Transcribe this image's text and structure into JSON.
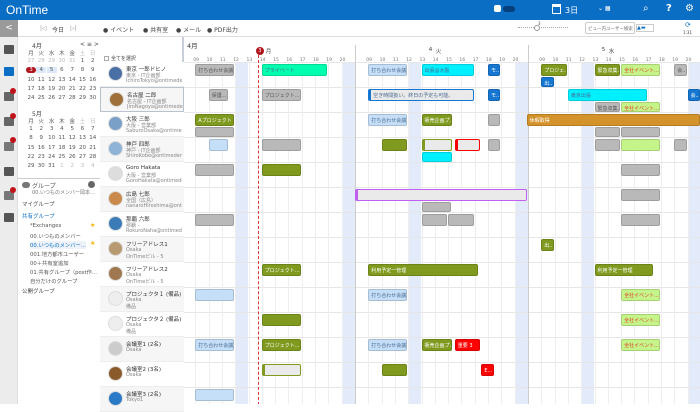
{
  "app": {
    "title": "OnTime"
  },
  "topbar": {
    "view_label": "3日",
    "icons": [
      "group-toggle-icon",
      "calendar-icon",
      "view-dropdown-icon",
      "zoom-icon",
      "help-icon",
      "settings-icon"
    ]
  },
  "toolbar": {
    "collapse": "<",
    "prev": "|◁",
    "today": "今日",
    "next": "▷|",
    "event": "イベント",
    "room": "共有室",
    "mail": "メール",
    "pdf": "PDF出力",
    "zoom_level": "3",
    "search_placeholder": "ビュー内ユーザー検索",
    "refresh_time": "1:31"
  },
  "minical": {
    "april": {
      "title": "4月",
      "nav": "< ≡ >",
      "weekdays": [
        "月",
        "火",
        "水",
        "木",
        "金",
        "土",
        "日"
      ],
      "days": [
        [
          "27",
          1
        ],
        [
          "28",
          1
        ],
        [
          "29",
          1
        ],
        [
          "30",
          1
        ],
        [
          "31",
          1
        ],
        [
          "1",
          0
        ],
        [
          "2",
          0
        ],
        [
          "3",
          0
        ],
        [
          "4",
          0
        ],
        [
          "5",
          0
        ],
        [
          "6",
          0
        ],
        [
          "7",
          0
        ],
        [
          "8",
          0
        ],
        [
          "9",
          0
        ],
        [
          "10",
          0
        ],
        [
          "11",
          0
        ],
        [
          "12",
          0
        ],
        [
          "13",
          0
        ],
        [
          "14",
          0
        ],
        [
          "15",
          0
        ],
        [
          "16",
          0
        ],
        [
          "17",
          0
        ],
        [
          "18",
          0
        ],
        [
          "19",
          0
        ],
        [
          "20",
          0
        ],
        [
          "21",
          0
        ],
        [
          "22",
          0
        ],
        [
          "23",
          0
        ],
        [
          "24",
          0
        ],
        [
          "25",
          0
        ],
        [
          "26",
          0
        ],
        [
          "27",
          0
        ],
        [
          "28",
          0
        ],
        [
          "29",
          0
        ],
        [
          "30",
          0
        ]
      ]
    },
    "may": {
      "title": "5月",
      "weekdays": [
        "月",
        "火",
        "水",
        "木",
        "金",
        "土",
        "日"
      ],
      "days": [
        [
          "1",
          0
        ],
        [
          "2",
          0
        ],
        [
          "3",
          0
        ],
        [
          "4",
          0
        ],
        [
          "5",
          0
        ],
        [
          "6",
          0
        ],
        [
          "7",
          0
        ],
        [
          "8",
          0
        ],
        [
          "9",
          0
        ],
        [
          "10",
          0
        ],
        [
          "11",
          0
        ],
        [
          "12",
          0
        ],
        [
          "13",
          0
        ],
        [
          "14",
          0
        ],
        [
          "15",
          0
        ],
        [
          "16",
          0
        ],
        [
          "17",
          0
        ],
        [
          "18",
          0
        ],
        [
          "19",
          0
        ],
        [
          "20",
          0
        ],
        [
          "21",
          0
        ],
        [
          "22",
          0
        ],
        [
          "23",
          0
        ],
        [
          "24",
          0
        ],
        [
          "25",
          0
        ],
        [
          "26",
          0
        ],
        [
          "27",
          0
        ],
        [
          "28",
          0
        ],
        [
          "29",
          0
        ],
        [
          "30",
          0
        ],
        [
          "31",
          0
        ],
        [
          "1",
          1
        ],
        [
          "2",
          1
        ],
        [
          "3",
          1
        ],
        [
          "4",
          1
        ]
      ]
    },
    "today": "3"
  },
  "groups": {
    "title": "グループ",
    "current": "00.いつものメンバー岡本...",
    "sections": [
      "マイグループ",
      "共有グループ",
      "公開グループ"
    ],
    "shared_items": [
      {
        "label": "*Exchanges",
        "star": true
      },
      {
        "label": "00.いつものメンバー",
        "star": false
      },
      {
        "label": "00.いつものメンバー...",
        "star": true
      },
      {
        "label": "001.地方都市ユーザー",
        "star": false
      },
      {
        "label": "00＋共有室追加",
        "star": false
      },
      {
        "label": "01.共有グループ（post作...",
        "star": false
      },
      {
        "label": "自分だけのグループ",
        "star": false
      }
    ]
  },
  "people": {
    "select_all": "全てを選択",
    "rows": [
      {
        "name": "東京 一郎ドヒノ",
        "sub": "東京 - IT企画部",
        "mail": "IchiroTokyo@ontimedemo.com",
        "color": "#4a6fa5"
      },
      {
        "name": "名古屋 二郎",
        "sub": "名古屋 - IT企画部",
        "mail": "JiroNagoya@ontimedemo.com",
        "color": "#a0703a"
      },
      {
        "name": "大阪 三郎",
        "sub": "大阪 - 営業部",
        "mail": "SaburoOsaka@ontimedemo.com",
        "color": "#7aa0c8"
      },
      {
        "name": "神戸 四郎",
        "sub": "神戸 - IT企画部",
        "mail": "ShiroKobe@ontimedemo.com",
        "color": "#8fb3d6"
      },
      {
        "name": "Goro Hakata",
        "sub": "大阪 - 営業部",
        "mail": "GoroHakata@ontimedemo.com",
        "color": "#ddd"
      },
      {
        "name": "広島 七郎",
        "sub": "全国（広島）",
        "mail": "nanaroHiroshima@ontimedemo.com",
        "color": "#c98a4b"
      },
      {
        "name": "那覇 六郎",
        "sub": "那覇 -",
        "mail": "RokuroNaha@ontimedemo.com",
        "color": "#3b7bb8"
      },
      {
        "name": "フリーアドレス1",
        "sub": "Osaka",
        "mail": "OnTimeビル - 5",
        "color": "#b89a70"
      },
      {
        "name": "フリーアドレス2",
        "sub": "Osaka",
        "mail": "OnTimeビル - 5",
        "color": "#a07850"
      },
      {
        "name": "プロジェクタ１ (備品)",
        "sub": "Osaka",
        "mail": "備品",
        "color": "#eee"
      },
      {
        "name": "プロジェクタ２ (備品)",
        "sub": "Osaka",
        "mail": "備品",
        "color": "#eee"
      },
      {
        "name": "会議室1 (2名)",
        "sub": "Osaka",
        "mail": "",
        "color": "#ccc"
      },
      {
        "name": "会議室2 (3名)",
        "sub": "Osaka",
        "mail": "",
        "color": "#8a5a2a"
      },
      {
        "name": "会議室3 (2名)",
        "sub": "Tokyo1",
        "mail": "",
        "color": "#2a7ac8"
      }
    ]
  },
  "calendar": {
    "month": "4月",
    "days": [
      {
        "num": "3",
        "dow": "月",
        "today": true
      },
      {
        "num": "4",
        "dow": "火"
      },
      {
        "num": "5",
        "dow": "水"
      }
    ],
    "hours": [
      "09",
      "10",
      "11",
      "12",
      "13",
      "14",
      "15",
      "16",
      "17",
      "18",
      "19",
      "20"
    ],
    "colors": {
      "gray": "#b9b9b9",
      "lightblue": "#c5dff8",
      "olive": "#7f9a1e",
      "cyan": "#00f0ff",
      "mint": "#00ffae",
      "blue": "#1677d2",
      "lime": "#c5f58a",
      "orange": "#d4922a",
      "red": "#ff0000",
      "empty": "#eaeaea"
    },
    "events": [
      {
        "row": 0,
        "day": 0,
        "s": 9,
        "e": 12,
        "lane": 0,
        "type": "gray",
        "label": "打ち合わせ会議"
      },
      {
        "row": 0,
        "day": 0,
        "s": 14,
        "e": 19,
        "lane": 0,
        "type": "mint",
        "label": "プライベート"
      },
      {
        "row": 0,
        "day": 1,
        "s": 9,
        "e": 12,
        "lane": 0,
        "type": "lightblue",
        "label": "打ち合わせ会議"
      },
      {
        "row": 0,
        "day": 1,
        "s": 13,
        "e": 17,
        "lane": 0,
        "type": "cyan",
        "label": "出張@大阪"
      },
      {
        "row": 0,
        "day": 1,
        "s": 18,
        "e": 19,
        "lane": 0,
        "type": "blue",
        "label": "モ..."
      },
      {
        "row": 0,
        "day": 2,
        "s": 9,
        "e": 11,
        "lane": 0,
        "type": "olive",
        "label": "プロジェ..."
      },
      {
        "row": 0,
        "day": 2,
        "s": 9,
        "e": 10,
        "lane": 1,
        "type": "blue",
        "label": "出..."
      },
      {
        "row": 0,
        "day": 2,
        "s": 13,
        "e": 15,
        "lane": 0,
        "type": "olive",
        "label": "緊急収集..."
      },
      {
        "row": 0,
        "day": 2,
        "s": 15,
        "e": 18,
        "lane": 0,
        "type": "lime",
        "label": "全社イベント..."
      },
      {
        "row": 0,
        "day": 2,
        "s": 19,
        "e": 20,
        "lane": 0,
        "type": "gray",
        "label": "会..."
      },
      {
        "row": 1,
        "day": 0,
        "s": 10,
        "e": 11.5,
        "lane": 0,
        "type": "gray",
        "label": "保護..."
      },
      {
        "row": 1,
        "day": 0,
        "s": 14,
        "e": 17,
        "lane": 0,
        "type": "gray",
        "label": "プロジェクト..."
      },
      {
        "row": 1,
        "day": 1,
        "s": 9,
        "e": 17,
        "lane": 0,
        "type": "empty",
        "accent": "blue",
        "label": "空き時間扱い。終日の予定も可能。"
      },
      {
        "row": 1,
        "day": 1,
        "s": 18,
        "e": 19,
        "lane": 0,
        "type": "blue",
        "label": "モ..."
      },
      {
        "row": 1,
        "day": 2,
        "s": 11,
        "e": 17,
        "lane": 0,
        "type": "cyan",
        "label": "東京出張"
      },
      {
        "row": 1,
        "day": 2,
        "s": 13,
        "e": 15,
        "lane": 1,
        "type": "gray",
        "label": "緊急収集..."
      },
      {
        "row": 1,
        "day": 2,
        "s": 15,
        "e": 18,
        "lane": 1,
        "type": "lime",
        "label": "全社イベント..."
      },
      {
        "row": 1,
        "day": 2,
        "s": 16.5,
        "e": 18.5,
        "lane": 2,
        "type": "blue",
        "label": "週間報告"
      },
      {
        "row": 1,
        "day": 2,
        "s": 20,
        "e": 21,
        "lane": 0,
        "type": "blue",
        "label": "会..."
      },
      {
        "row": 2,
        "day": 0,
        "s": 9,
        "e": 12,
        "lane": 0,
        "type": "olive",
        "label": "Aプロジェクト"
      },
      {
        "row": 2,
        "day": 0,
        "s": 9,
        "e": 12,
        "lane": 1,
        "type": "gray",
        "label": ""
      },
      {
        "row": 2,
        "day": 1,
        "s": 9,
        "e": 12,
        "lane": 0,
        "type": "lightblue",
        "label": "打ち合わせ会議"
      },
      {
        "row": 2,
        "day": 1,
        "s": 13,
        "e": 15.4,
        "lane": 0,
        "type": "olive",
        "label": "販売企画プ..."
      },
      {
        "row": 2,
        "day": 1,
        "s": 18,
        "e": 19,
        "lane": 0,
        "type": "gray",
        "label": ""
      },
      {
        "row": 2,
        "day": 2,
        "s": 7.9,
        "e": 21,
        "lane": 0,
        "type": "orange",
        "label": "休暇取得"
      },
      {
        "row": 2,
        "day": 2,
        "s": 13,
        "e": 15,
        "lane": 1,
        "type": "gray",
        "label": ""
      },
      {
        "row": 2,
        "day": 2,
        "s": 15,
        "e": 18,
        "lane": 1,
        "type": "gray",
        "label": ""
      },
      {
        "row": 3,
        "day": 0,
        "s": 10,
        "e": 11.5,
        "lane": 0,
        "type": "lightblue",
        "label": ""
      },
      {
        "row": 3,
        "day": 0,
        "s": 14,
        "e": 17,
        "lane": 0,
        "type": "gray",
        "label": ""
      },
      {
        "row": 3,
        "day": 1,
        "s": 10,
        "e": 12,
        "lane": 0,
        "type": "olive",
        "label": ""
      },
      {
        "row": 3,
        "day": 1,
        "s": 13,
        "e": 15.4,
        "lane": 0,
        "type": "empty",
        "accent": "olive",
        "label": ""
      },
      {
        "row": 3,
        "day": 1,
        "s": 13,
        "e": 15.4,
        "lane": 1,
        "type": "cyan",
        "label": ""
      },
      {
        "row": 3,
        "day": 1,
        "s": 15.5,
        "e": 17.5,
        "lane": 0,
        "type": "empty",
        "accent": "red",
        "label": ""
      },
      {
        "row": 3,
        "day": 1,
        "s": 18,
        "e": 19,
        "lane": 0,
        "type": "gray",
        "label": ""
      },
      {
        "row": 3,
        "day": 2,
        "s": 13,
        "e": 15,
        "lane": 0,
        "type": "gray",
        "label": ""
      },
      {
        "row": 3,
        "day": 2,
        "s": 15,
        "e": 18,
        "lane": 0,
        "type": "lime",
        "label": ""
      },
      {
        "row": 3,
        "day": 2,
        "s": 19,
        "e": 20,
        "lane": 0,
        "type": "gray",
        "label": ""
      },
      {
        "row": 4,
        "day": 0,
        "s": 9,
        "e": 12,
        "lane": 0,
        "type": "gray",
        "label": ""
      },
      {
        "row": 4,
        "day": 0,
        "s": 14,
        "e": 17,
        "lane": 0,
        "type": "olive",
        "label": ""
      },
      {
        "row": 4,
        "day": 2,
        "s": 15,
        "e": 18,
        "lane": 0,
        "type": "gray",
        "label": ""
      },
      {
        "row": 5,
        "day": 1,
        "s": 8,
        "e": 21,
        "lane": 0,
        "type": "empty",
        "accent": "purple",
        "label": ""
      },
      {
        "row": 5,
        "day": 1,
        "s": 13,
        "e": 15.3,
        "lane": 1,
        "type": "gray",
        "label": ""
      },
      {
        "row": 5,
        "day": 2,
        "s": 15,
        "e": 18,
        "lane": 0,
        "type": "gray",
        "label": ""
      },
      {
        "row": 6,
        "day": 0,
        "s": 9,
        "e": 12,
        "lane": 0,
        "type": "gray",
        "label": ""
      },
      {
        "row": 6,
        "day": 1,
        "s": 13,
        "e": 15,
        "lane": 0,
        "type": "gray",
        "label": ""
      },
      {
        "row": 6,
        "day": 1,
        "s": 15,
        "e": 17,
        "lane": 0,
        "type": "gray",
        "label": ""
      },
      {
        "row": 6,
        "day": 2,
        "s": 15,
        "e": 18,
        "lane": 0,
        "type": "gray",
        "label": ""
      },
      {
        "row": 7,
        "day": 2,
        "s": 9,
        "e": 10,
        "lane": 0,
        "type": "olive",
        "label": "出..."
      },
      {
        "row": 8,
        "day": 0,
        "s": 14,
        "e": 17,
        "lane": 0,
        "type": "olive",
        "label": "プロジェクト..."
      },
      {
        "row": 8,
        "day": 1,
        "s": 9,
        "e": 17.3,
        "lane": 0,
        "type": "olive",
        "label": "利用予定一管理"
      },
      {
        "row": 8,
        "day": 2,
        "s": 13,
        "e": 17.5,
        "lane": 0,
        "type": "olive",
        "label": "利用予定一管理"
      },
      {
        "row": 9,
        "day": 0,
        "s": 9,
        "e": 12,
        "lane": 0,
        "type": "lightblue",
        "label": ""
      },
      {
        "row": 9,
        "day": 1,
        "s": 9,
        "e": 12,
        "lane": 0,
        "type": "lightblue",
        "label": "打ち合わせ会議"
      },
      {
        "row": 9,
        "day": 2,
        "s": 15,
        "e": 18,
        "lane": 0,
        "type": "lime",
        "label": "全社イベント..."
      },
      {
        "row": 10,
        "day": 0,
        "s": 14,
        "e": 17,
        "lane": 0,
        "type": "olive",
        "label": ""
      },
      {
        "row": 10,
        "day": 2,
        "s": 15,
        "e": 18,
        "lane": 0,
        "type": "lime",
        "label": "全社イベント..."
      },
      {
        "row": 11,
        "day": 0,
        "s": 9,
        "e": 12,
        "lane": 0,
        "type": "lightblue",
        "label": "打ち合わせ会議"
      },
      {
        "row": 11,
        "day": 0,
        "s": 14,
        "e": 17,
        "lane": 0,
        "type": "olive",
        "label": "プロジェクト..."
      },
      {
        "row": 11,
        "day": 1,
        "s": 9,
        "e": 12,
        "lane": 0,
        "type": "lightblue",
        "label": "打ち合わせ会議"
      },
      {
        "row": 11,
        "day": 1,
        "s": 13,
        "e": 15.4,
        "lane": 0,
        "type": "olive",
        "label": "販売企画プ..."
      },
      {
        "row": 11,
        "day": 1,
        "s": 15.5,
        "e": 17.5,
        "lane": 0,
        "type": "red",
        "label": "重要 3"
      },
      {
        "row": 11,
        "day": 2,
        "s": 15,
        "e": 18,
        "lane": 0,
        "type": "lime",
        "label": "全社イベント..."
      },
      {
        "row": 12,
        "day": 0,
        "s": 14,
        "e": 17,
        "lane": 0,
        "type": "empty",
        "accent": "olive",
        "label": ""
      },
      {
        "row": 12,
        "day": 1,
        "s": 10,
        "e": 12,
        "lane": 0,
        "type": "olive",
        "label": ""
      },
      {
        "row": 12,
        "day": 1,
        "s": 17.5,
        "e": 18.5,
        "lane": 0,
        "type": "red",
        "label": "E..."
      },
      {
        "row": 13,
        "day": 0,
        "s": 9,
        "e": 12,
        "lane": 0,
        "type": "lightblue",
        "label": ""
      }
    ]
  }
}
